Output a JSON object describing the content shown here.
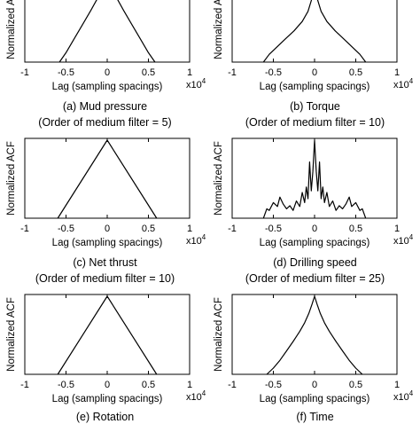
{
  "chart_data": [
    {
      "type": "line",
      "caption": "(a) Mud pressure",
      "note": "(Order of medium filter = 5)",
      "xlabel": "Lag (sampling spacings)",
      "ylabel": "Normalized ACF",
      "x_multiplier": "x10",
      "x_multiplier_exp": "4",
      "xlim": [
        -1,
        1
      ],
      "ylim": [
        0,
        1
      ],
      "xticks": [
        "-1",
        "-0.5",
        "0",
        "0.5",
        "1"
      ],
      "series": [
        {
          "x": [
            -0.58,
            -0.5,
            -0.4,
            -0.3,
            -0.2,
            -0.1,
            -0.03,
            0,
            0.03,
            0.1,
            0.2,
            0.3,
            0.4,
            0.5,
            0.58
          ],
          "y": [
            0,
            0.12,
            0.3,
            0.48,
            0.66,
            0.85,
            0.97,
            1,
            0.97,
            0.85,
            0.66,
            0.48,
            0.3,
            0.12,
            0
          ]
        }
      ]
    },
    {
      "type": "line",
      "caption": "(b) Torque",
      "note": "(Order of medium filter = 10)",
      "xlabel": "Lag (sampling spacings)",
      "ylabel": "Normalized ACF",
      "x_multiplier": "x10",
      "x_multiplier_exp": "4",
      "xlim": [
        -1,
        1
      ],
      "ylim": [
        0,
        1
      ],
      "xticks": [
        "-1",
        "-0.5",
        "0",
        "0.5",
        "1"
      ],
      "series": [
        {
          "x": [
            -0.62,
            -0.55,
            -0.45,
            -0.35,
            -0.25,
            -0.15,
            -0.08,
            -0.03,
            0,
            0.03,
            0.08,
            0.15,
            0.25,
            0.35,
            0.45,
            0.55,
            0.62
          ],
          "y": [
            0,
            0.1,
            0.2,
            0.3,
            0.4,
            0.52,
            0.65,
            0.82,
            1,
            0.82,
            0.65,
            0.52,
            0.4,
            0.3,
            0.2,
            0.1,
            0
          ]
        }
      ]
    },
    {
      "type": "line",
      "caption": "(c) Net thrust",
      "note": "(Order of medium filter = 10)",
      "xlabel": "Lag (sampling spacings)",
      "ylabel": "Normalized ACF",
      "x_multiplier": "x10",
      "x_multiplier_exp": "4",
      "xlim": [
        -1,
        1
      ],
      "ylim": [
        0,
        1
      ],
      "xticks": [
        "-1",
        "-0.5",
        "0",
        "0.5",
        "1"
      ],
      "series": [
        {
          "x": [
            -0.6,
            0,
            0.6
          ],
          "y": [
            0,
            1,
            0
          ]
        }
      ]
    },
    {
      "type": "line",
      "caption": "(d) Drilling speed",
      "note": "(Order of medium filter = 25)",
      "xlabel": "Lag (sampling spacings)",
      "ylabel": "Normalized ACF",
      "x_multiplier": "x10",
      "x_multiplier_exp": "4",
      "xlim": [
        -1,
        1
      ],
      "ylim": [
        0,
        1
      ],
      "xticks": [
        "-1",
        "-0.5",
        "0",
        "0.5",
        "1"
      ],
      "series": [
        {
          "x": [
            -0.62,
            -0.58,
            -0.55,
            -0.5,
            -0.45,
            -0.42,
            -0.38,
            -0.34,
            -0.3,
            -0.26,
            -0.22,
            -0.18,
            -0.15,
            -0.12,
            -0.1,
            -0.08,
            -0.06,
            -0.04,
            -0.02,
            0,
            0.02,
            0.04,
            0.06,
            0.08,
            0.1,
            0.12,
            0.15,
            0.18,
            0.22,
            0.26,
            0.3,
            0.34,
            0.38,
            0.42,
            0.45,
            0.5,
            0.55,
            0.58,
            0.62
          ],
          "y": [
            0,
            0.12,
            0.1,
            0.2,
            0.15,
            0.27,
            0.18,
            0.12,
            0.16,
            0.1,
            0.22,
            0.15,
            0.33,
            0.2,
            0.4,
            0.25,
            0.72,
            0.35,
            0.6,
            1,
            0.6,
            0.35,
            0.72,
            0.25,
            0.4,
            0.2,
            0.33,
            0.15,
            0.22,
            0.1,
            0.16,
            0.12,
            0.18,
            0.27,
            0.15,
            0.2,
            0.1,
            0.12,
            0
          ]
        }
      ]
    },
    {
      "type": "line",
      "caption": "(e) Rotation",
      "xlabel": "Lag (sampling spacings)",
      "ylabel": "Normalized ACF",
      "x_multiplier": "x10",
      "x_multiplier_exp": "4",
      "xlim": [
        -1,
        1
      ],
      "ylim": [
        0,
        1
      ],
      "xticks": [
        "-1",
        "-0.5",
        "0",
        "0.5",
        "1"
      ],
      "series": [
        {
          "x": [
            -0.6,
            0,
            0.6
          ],
          "y": [
            0,
            1,
            0
          ]
        }
      ]
    },
    {
      "type": "line",
      "caption": "(f) Time",
      "xlabel": "Lag (sampling spacings)",
      "ylabel": "Normalized ACF",
      "x_multiplier": "x10",
      "x_multiplier_exp": "4",
      "xlim": [
        -1,
        1
      ],
      "ylim": [
        0,
        1
      ],
      "xticks": [
        "-1",
        "-0.5",
        "0",
        "0.5",
        "1"
      ],
      "series": [
        {
          "x": [
            -0.58,
            -0.5,
            -0.42,
            -0.34,
            -0.26,
            -0.18,
            -0.12,
            -0.07,
            -0.03,
            0,
            0.03,
            0.07,
            0.12,
            0.18,
            0.26,
            0.34,
            0.42,
            0.5,
            0.58
          ],
          "y": [
            0,
            0.08,
            0.18,
            0.3,
            0.42,
            0.55,
            0.66,
            0.78,
            0.9,
            1,
            0.9,
            0.78,
            0.66,
            0.55,
            0.42,
            0.3,
            0.18,
            0.08,
            0
          ]
        }
      ]
    }
  ]
}
